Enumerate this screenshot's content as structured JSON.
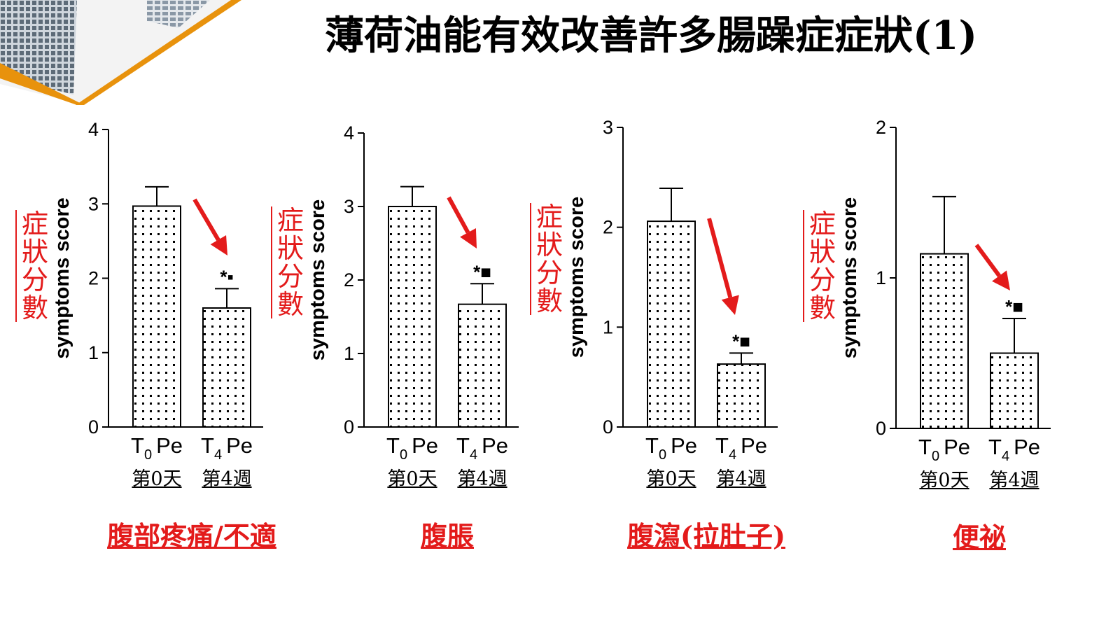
{
  "slide": {
    "title": "薄荷油能有效改善許多腸躁症症狀(1)"
  },
  "colors": {
    "accent_red": "#e31b1b",
    "deco_orange": "#e8920c"
  },
  "chart_data": [
    {
      "type": "bar",
      "title": "",
      "xlabel": "",
      "ylabel": "symptoms score",
      "ylabel_cn": "症狀分數",
      "ylim": [
        0,
        4
      ],
      "yticks": [
        "0",
        "1",
        "2",
        "3",
        "4"
      ],
      "categories": [
        {
          "main": "T",
          "sub": "0",
          "suffix": "Pe"
        },
        {
          "main": "T",
          "sub": "4",
          "suffix": "Pe"
        }
      ],
      "day_labels": [
        "第0天",
        "第4週"
      ],
      "values": [
        2.97,
        1.6
      ],
      "errors": [
        0.26,
        0.26
      ],
      "significance": [
        "",
        "*▪"
      ],
      "symptom": "腹部疼痛/不適"
    },
    {
      "type": "bar",
      "title": "",
      "xlabel": "",
      "ylabel": "symptoms score",
      "ylabel_cn": "症狀分數",
      "ylim": [
        0,
        4
      ],
      "yticks": [
        "0",
        "1",
        "2",
        "3",
        "4"
      ],
      "categories": [
        {
          "main": "T",
          "sub": "0",
          "suffix": "Pe"
        },
        {
          "main": "T",
          "sub": "4",
          "suffix": "Pe"
        }
      ],
      "day_labels": [
        "第0天",
        "第4週"
      ],
      "values": [
        3.0,
        1.67
      ],
      "errors": [
        0.27,
        0.28
      ],
      "significance": [
        "",
        "*■"
      ],
      "symptom": "腹脹"
    },
    {
      "type": "bar",
      "title": "",
      "xlabel": "",
      "ylabel": "symptoms score",
      "ylabel_cn": "症狀分數",
      "ylim": [
        0,
        3
      ],
      "yticks": [
        "0",
        "1",
        "2",
        "3"
      ],
      "categories": [
        {
          "main": "T",
          "sub": "0",
          "suffix": "Pe"
        },
        {
          "main": "T",
          "sub": "4",
          "suffix": "Pe"
        }
      ],
      "day_labels": [
        "第0天",
        "第4週"
      ],
      "values": [
        2.06,
        0.63
      ],
      "errors": [
        0.33,
        0.11
      ],
      "significance": [
        "",
        "*■"
      ],
      "symptom": "腹瀉(拉肚子)"
    },
    {
      "type": "bar",
      "title": "",
      "xlabel": "",
      "ylabel": "symptoms score",
      "ylabel_cn": "症狀分數",
      "ylim": [
        0,
        2
      ],
      "yticks": [
        "0",
        "1",
        "2"
      ],
      "categories": [
        {
          "main": "T",
          "sub": "0",
          "suffix": "Pe"
        },
        {
          "main": "T",
          "sub": "4",
          "suffix": "Pe"
        }
      ],
      "day_labels": [
        "第0天",
        "第4週"
      ],
      "values": [
        1.16,
        0.5
      ],
      "errors": [
        0.38,
        0.23
      ],
      "significance": [
        "",
        "*■"
      ],
      "symptom": "便祕"
    }
  ]
}
